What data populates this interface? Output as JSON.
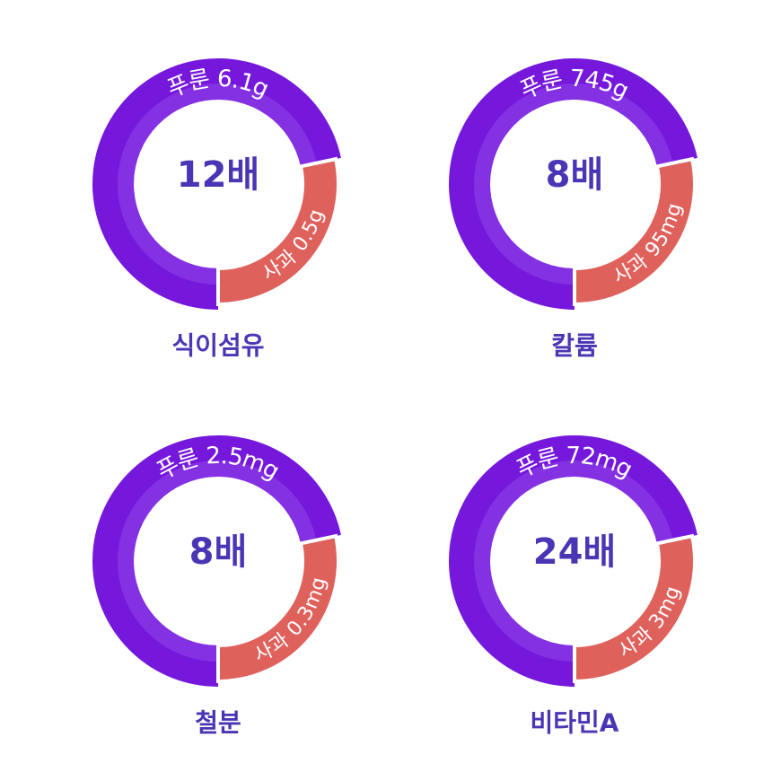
{
  "panels": [
    {
      "top_label": "푸룬 6.1g",
      "bottom_label": "사과 0.5g",
      "center": "12배",
      "title": "식이섬유"
    },
    {
      "top_label": "푸룬 745g",
      "bottom_label": "사과 95mg",
      "center": "8배",
      "title": "칼륨"
    },
    {
      "top_label": "푸룬 2.5mg",
      "bottom_label": "사과 0.3mg",
      "center": "8배",
      "title": "철분"
    },
    {
      "top_label": "푸룬 72mg",
      "bottom_label": "사과 3mg",
      "center": "24배",
      "title": "비타민A"
    }
  ]
}
